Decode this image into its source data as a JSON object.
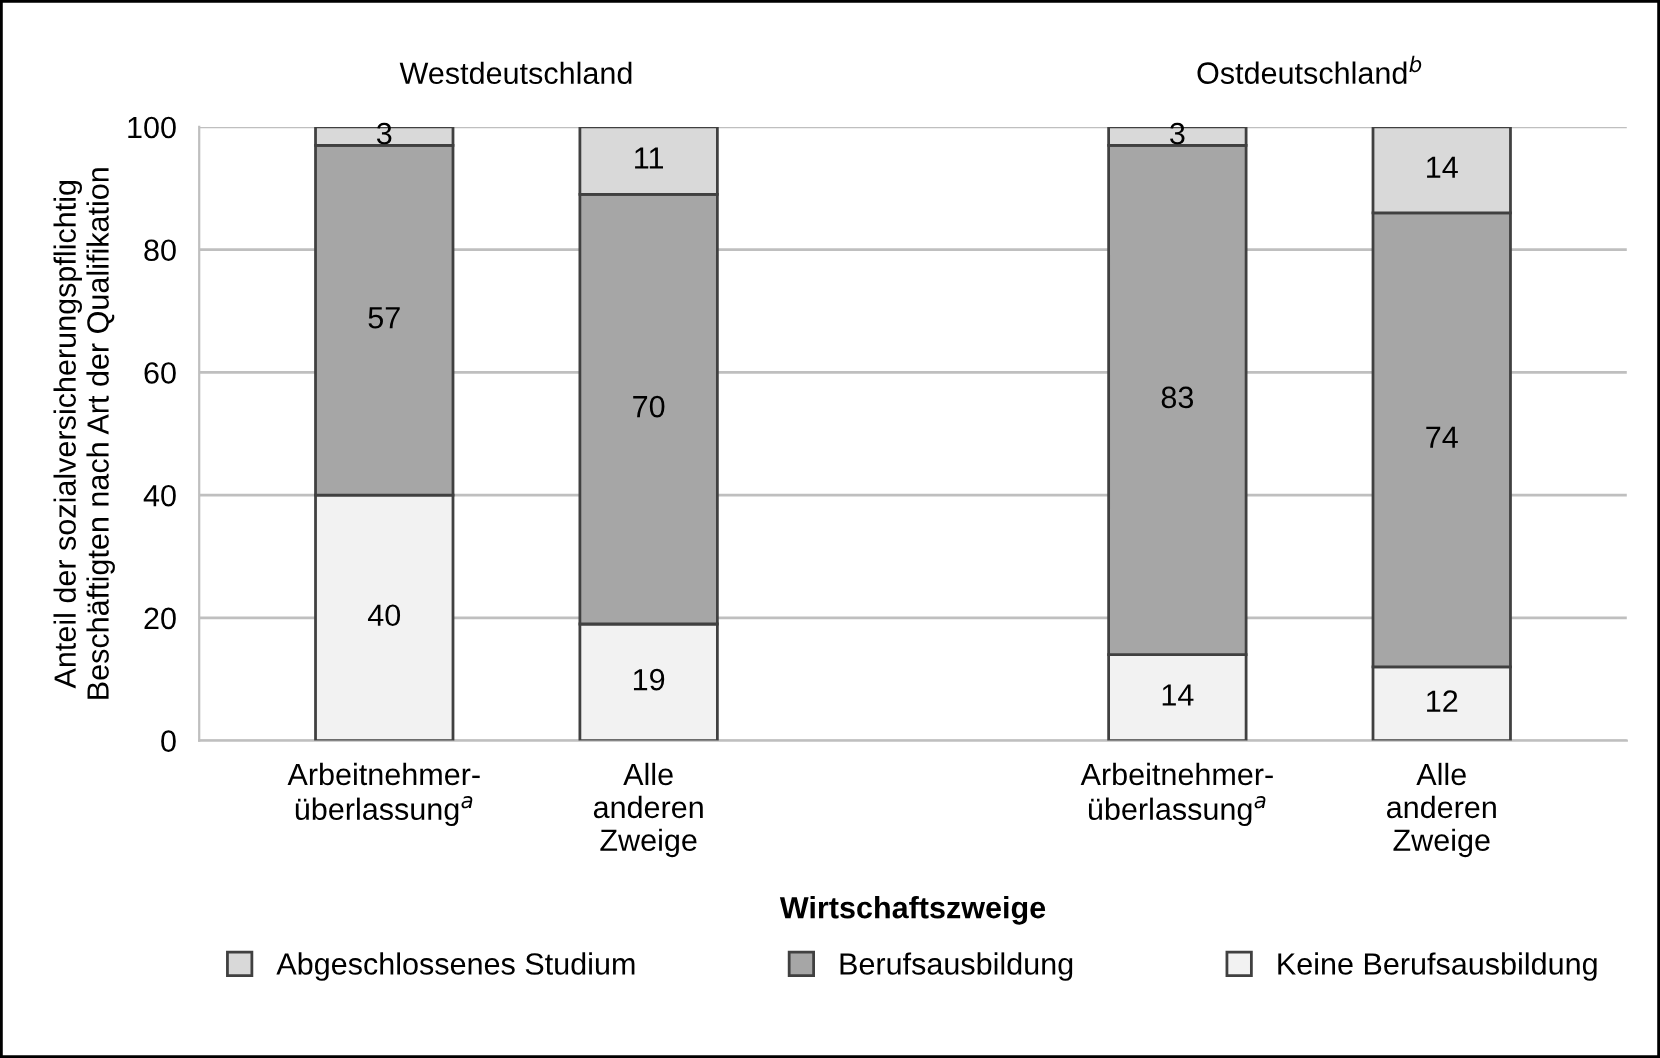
{
  "chart_data": {
    "type": "bar",
    "stacked": true,
    "categories": [
      "Arbeitnehmer-\nüberlassung$^{a}$",
      "Alle\nanderen\nZweige",
      null,
      "Arbeitnehmer-\nüberlassung$^{a}$",
      "Alle\nanderen\nZweige"
    ],
    "series": [
      {
        "name": "Keine Berufsausbildung",
        "color": "#f2f2f2",
        "values": [
          40,
          19,
          null,
          14,
          12
        ]
      },
      {
        "name": "Berufsausbildung",
        "color": "#a6a6a6",
        "values": [
          57,
          70,
          null,
          83,
          74
        ]
      },
      {
        "name": "Abgeschlossenes Studium",
        "color": "#d9d9d9",
        "values": [
          3,
          11,
          null,
          3,
          14
        ]
      }
    ],
    "annotations": [
      "Westdeutschland",
      "Ostdeutschland$^{b}$"
    ],
    "xlabel": "Wirtschaftszweige",
    "ylabel": "Anteil der sozialversicherungspflichtig\nBeschäftigten nach Art der Qualifikation",
    "ylim": [
      0,
      100
    ],
    "yticks": [
      0,
      20,
      40,
      60,
      80,
      100
    ],
    "grid": "y",
    "legend": "bottom",
    "data_labels": true
  }
}
